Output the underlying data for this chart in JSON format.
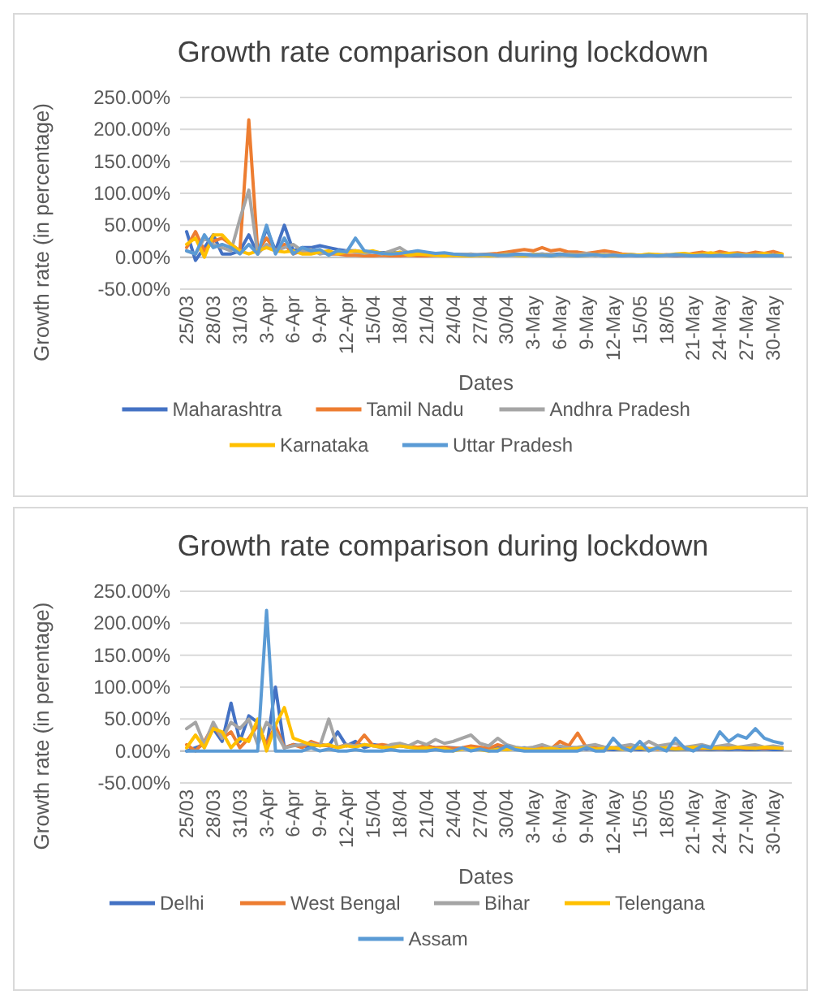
{
  "chart_data": [
    {
      "type": "line",
      "title": "Growth rate comparison during lockdown",
      "xlabel": "Dates",
      "ylabel": "Growth rate (in percentage)",
      "ylim": [
        -50,
        250
      ],
      "yticks": [
        {
          "value": -50,
          "label": "-50.00%"
        },
        {
          "value": 0,
          "label": "0.00%"
        },
        {
          "value": 50,
          "label": "50.00%"
        },
        {
          "value": 100,
          "label": "100.00%"
        },
        {
          "value": 150,
          "label": "150.00%"
        },
        {
          "value": 200,
          "label": "200.00%"
        },
        {
          "value": 250,
          "label": "250.00%"
        }
      ],
      "grid": "y",
      "legend": "bottom",
      "categories": [
        "25/03",
        null,
        null,
        "28/03",
        null,
        null,
        "31/03",
        null,
        null,
        "3-Apr",
        null,
        null,
        "6-Apr",
        null,
        null,
        "9-Apr",
        null,
        null,
        "12-Apr",
        null,
        null,
        "15/04",
        null,
        null,
        "18/04",
        null,
        null,
        "21/04",
        null,
        null,
        "24/04",
        null,
        null,
        "27/04",
        null,
        null,
        "30/04",
        null,
        null,
        "3-May",
        null,
        null,
        "6-May",
        null,
        null,
        "9-May",
        null,
        null,
        "12-May",
        null,
        null,
        "15/05",
        null,
        null,
        "18/05",
        null,
        null,
        "21-May",
        null,
        null,
        "24-May",
        null,
        null,
        "27-May",
        null,
        null,
        "30-May",
        null
      ],
      "series": [
        {
          "name": "Maharashtra",
          "color": "#4472c4",
          "values": [
            40,
            -5,
            15,
            35,
            5,
            5,
            10,
            35,
            5,
            45,
            10,
            50,
            10,
            15,
            15,
            18,
            15,
            12,
            10,
            10,
            8,
            8,
            7,
            8,
            6,
            6,
            8,
            5,
            6,
            5,
            4,
            4,
            4,
            3,
            4,
            3,
            4,
            5,
            4,
            4,
            5,
            4,
            5,
            4,
            3,
            4,
            3,
            4,
            3,
            3,
            3,
            2,
            3,
            3,
            3,
            2,
            3,
            2,
            3,
            2,
            3,
            2,
            2,
            3,
            2,
            2,
            2,
            2
          ]
        },
        {
          "name": "Tamil Nadu",
          "color": "#ed7d31",
          "values": [
            15,
            40,
            10,
            25,
            30,
            20,
            10,
            215,
            10,
            30,
            10,
            20,
            5,
            10,
            10,
            8,
            5,
            5,
            3,
            3,
            2,
            2,
            3,
            2,
            2,
            3,
            2,
            2,
            3,
            4,
            3,
            4,
            3,
            4,
            5,
            6,
            8,
            10,
            12,
            10,
            15,
            10,
            12,
            8,
            8,
            6,
            8,
            10,
            8,
            5,
            4,
            3,
            4,
            3,
            4,
            3,
            3,
            6,
            8,
            5,
            9,
            6,
            7,
            5,
            8,
            6,
            9,
            5
          ]
        },
        {
          "name": "Andhra Pradesh",
          "color": "#a5a5a5",
          "values": [
            10,
            5,
            30,
            20,
            15,
            10,
            60,
            105,
            5,
            20,
            10,
            15,
            20,
            10,
            12,
            5,
            8,
            6,
            10,
            8,
            6,
            8,
            5,
            10,
            15,
            6,
            8,
            5,
            4,
            5,
            3,
            4,
            5,
            3,
            4,
            3,
            5,
            4,
            3,
            4,
            5,
            4,
            3,
            5,
            4,
            6,
            4,
            3,
            4,
            3,
            4,
            3,
            3,
            4,
            3,
            3,
            5,
            3,
            4,
            3,
            4,
            3,
            3,
            4,
            3,
            2,
            3,
            3
          ]
        },
        {
          "name": "Karnataka",
          "color": "#ffc000",
          "values": [
            20,
            30,
            0,
            35,
            35,
            20,
            10,
            5,
            10,
            15,
            10,
            8,
            10,
            5,
            5,
            8,
            10,
            5,
            8,
            10,
            8,
            10,
            6,
            5,
            8,
            3,
            5,
            4,
            3,
            2,
            3,
            2,
            2,
            3,
            2,
            3,
            4,
            3,
            2,
            4,
            3,
            2,
            4,
            3,
            2,
            3,
            4,
            3,
            2,
            3,
            4,
            3,
            5,
            4,
            3,
            5,
            6,
            4,
            5,
            7,
            4,
            6,
            5,
            3,
            4,
            6,
            3,
            5
          ]
        },
        {
          "name": "Uttar Pradesh",
          "color": "#5b9bd5",
          "values": [
            10,
            5,
            35,
            15,
            20,
            15,
            5,
            20,
            5,
            50,
            5,
            30,
            5,
            15,
            10,
            12,
            3,
            10,
            8,
            30,
            10,
            8,
            6,
            5,
            6,
            8,
            10,
            8,
            6,
            7,
            5,
            4,
            3,
            4,
            4,
            3,
            3,
            4,
            4,
            3,
            3,
            2,
            4,
            3,
            2,
            3,
            4,
            2,
            3,
            2,
            3,
            2,
            3,
            2,
            3,
            4,
            3,
            2,
            3,
            2,
            3,
            2,
            4,
            2,
            3,
            2,
            3,
            2
          ]
        }
      ]
    },
    {
      "type": "line",
      "title": "Growth rate comparison during lockdown",
      "xlabel": "Dates",
      "ylabel": "Growth rate (in perentage)",
      "ylim": [
        -50,
        250
      ],
      "yticks": [
        {
          "value": -50,
          "label": "-50.00%"
        },
        {
          "value": 0,
          "label": "0.00%"
        },
        {
          "value": 50,
          "label": "50.00%"
        },
        {
          "value": 100,
          "label": "100.00%"
        },
        {
          "value": 150,
          "label": "150.00%"
        },
        {
          "value": 200,
          "label": "200.00%"
        },
        {
          "value": 250,
          "label": "250.00%"
        }
      ],
      "grid": "y",
      "legend": "bottom",
      "categories": [
        "25/03",
        null,
        null,
        "28/03",
        null,
        null,
        "31/03",
        null,
        null,
        "3-Apr",
        null,
        null,
        "6-Apr",
        null,
        null,
        "9-Apr",
        null,
        null,
        "12-Apr",
        null,
        null,
        "15/04",
        null,
        null,
        "18/04",
        null,
        null,
        "21/04",
        null,
        null,
        "24/04",
        null,
        null,
        "27/04",
        null,
        null,
        "30/04",
        null,
        null,
        "3-May",
        null,
        null,
        "6-May",
        null,
        null,
        "9-May",
        null,
        null,
        "12-May",
        null,
        null,
        "15/05",
        null,
        null,
        "18/05",
        null,
        null,
        "21-May",
        null,
        null,
        "24-May",
        null,
        null,
        "27-May",
        null,
        null,
        "30-May",
        null
      ],
      "series": [
        {
          "name": "Delhi",
          "color": "#4472c4",
          "values": [
            0,
            5,
            10,
            35,
            15,
            75,
            15,
            55,
            45,
            5,
            100,
            5,
            10,
            8,
            6,
            10,
            8,
            30,
            8,
            15,
            5,
            10,
            8,
            6,
            8,
            6,
            5,
            8,
            5,
            6,
            5,
            4,
            6,
            5,
            4,
            5,
            3,
            4,
            5,
            4,
            3,
            4,
            5,
            6,
            4,
            3,
            4,
            3,
            2,
            3,
            3,
            2,
            3,
            4,
            3,
            2,
            3,
            2,
            3,
            2,
            3,
            2,
            3,
            2,
            2,
            3,
            2,
            2
          ]
        },
        {
          "name": "West Bengal",
          "color": "#ed7d31",
          "values": [
            10,
            0,
            15,
            40,
            20,
            30,
            5,
            20,
            40,
            10,
            40,
            5,
            10,
            5,
            15,
            10,
            8,
            6,
            10,
            8,
            25,
            8,
            10,
            8,
            10,
            8,
            6,
            8,
            5,
            6,
            4,
            5,
            8,
            6,
            4,
            10,
            6,
            5,
            3,
            4,
            5,
            3,
            15,
            8,
            28,
            5,
            8,
            6,
            5,
            4,
            6,
            5,
            4,
            3,
            5,
            4,
            6,
            5,
            4,
            5,
            4,
            5,
            6,
            4,
            5,
            4,
            5,
            6
          ]
        },
        {
          "name": "Bihar",
          "color": "#a5a5a5",
          "values": [
            35,
            45,
            10,
            45,
            20,
            45,
            35,
            50,
            10,
            45,
            30,
            5,
            8,
            10,
            12,
            8,
            50,
            5,
            10,
            8,
            10,
            8,
            5,
            10,
            12,
            8,
            15,
            10,
            18,
            12,
            15,
            20,
            25,
            12,
            8,
            20,
            10,
            6,
            4,
            6,
            10,
            5,
            8,
            5,
            6,
            8,
            10,
            6,
            5,
            8,
            10,
            6,
            15,
            8,
            10,
            12,
            6,
            8,
            10,
            6,
            8,
            10,
            6,
            8,
            10,
            6,
            8,
            6
          ]
        },
        {
          "name": "Telengana",
          "color": "#ffc000",
          "values": [
            5,
            25,
            5,
            35,
            30,
            5,
            20,
            15,
            50,
            0,
            40,
            68,
            20,
            15,
            10,
            8,
            10,
            5,
            8,
            6,
            10,
            8,
            6,
            5,
            8,
            6,
            4,
            5,
            3,
            4,
            0,
            3,
            4,
            2,
            0,
            3,
            2,
            4,
            3,
            2,
            3,
            4,
            2,
            3,
            4,
            5,
            3,
            4,
            5,
            3,
            4,
            5,
            3,
            4,
            5,
            3,
            4,
            6,
            5,
            4,
            5,
            4,
            6,
            5,
            4,
            6,
            5,
            4
          ]
        },
        {
          "name": "Assam",
          "color": "#5b9bd5",
          "values": [
            0,
            0,
            0,
            0,
            0,
            0,
            0,
            0,
            0,
            220,
            0,
            0,
            0,
            0,
            5,
            0,
            3,
            0,
            0,
            2,
            0,
            0,
            0,
            2,
            0,
            0,
            0,
            0,
            2,
            0,
            0,
            5,
            0,
            3,
            0,
            0,
            8,
            2,
            0,
            0,
            0,
            0,
            0,
            0,
            0,
            5,
            0,
            0,
            20,
            5,
            0,
            15,
            0,
            5,
            0,
            20,
            5,
            0,
            8,
            5,
            30,
            15,
            25,
            20,
            35,
            20,
            15,
            12
          ]
        }
      ]
    }
  ]
}
